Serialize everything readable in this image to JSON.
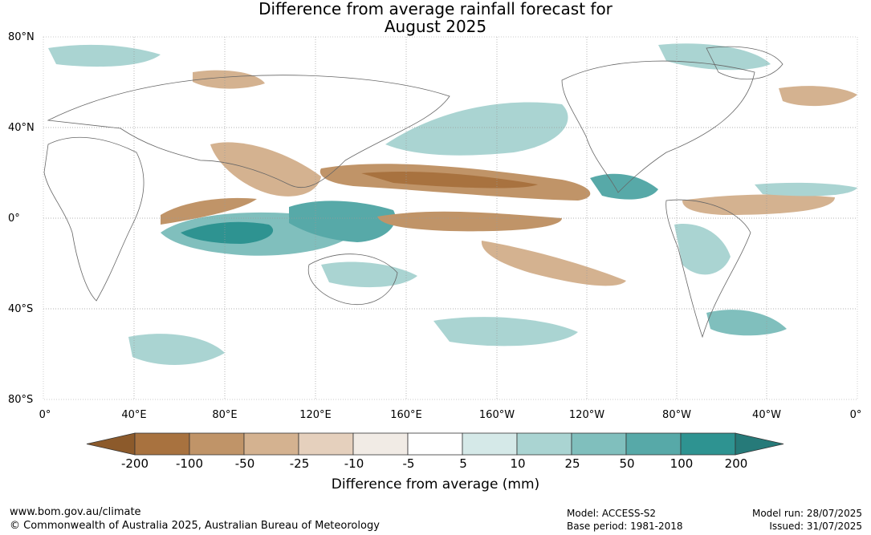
{
  "title": {
    "line1": "Difference from average rainfall forecast for",
    "line2": "August 2025"
  },
  "lat_labels": [
    "80°N",
    "40°N",
    "0°",
    "40°S",
    "80°S"
  ],
  "lon_labels": [
    "0°",
    "40°E",
    "80°E",
    "120°E",
    "160°E",
    "160°W",
    "120°W",
    "80°W",
    "40°W",
    "0°"
  ],
  "colorbar": {
    "title": "Difference from average (mm)",
    "ticks": [
      "-200",
      "-100",
      "-50",
      "-25",
      "-10",
      "-5",
      "5",
      "10",
      "25",
      "50",
      "100",
      "200"
    ],
    "colors": [
      "#8c5a2b",
      "#a8723f",
      "#c09468",
      "#d4b290",
      "#e5d0bd",
      "#f1ebe5",
      "#ffffff",
      "#d5e9e8",
      "#aad4d2",
      "#80bfbd",
      "#57a9a8",
      "#2e9391",
      "#267a79"
    ]
  },
  "footer": {
    "url": "www.bom.gov.au/climate",
    "copyright": "© Commonwealth of Australia 2025, Australian Bureau of Meteorology",
    "model": "Model: ACCESS-S2",
    "base_period": "Base period: 1981-2018",
    "model_run": "Model run: 28/07/2025",
    "issued": "Issued: 31/07/2025"
  }
}
